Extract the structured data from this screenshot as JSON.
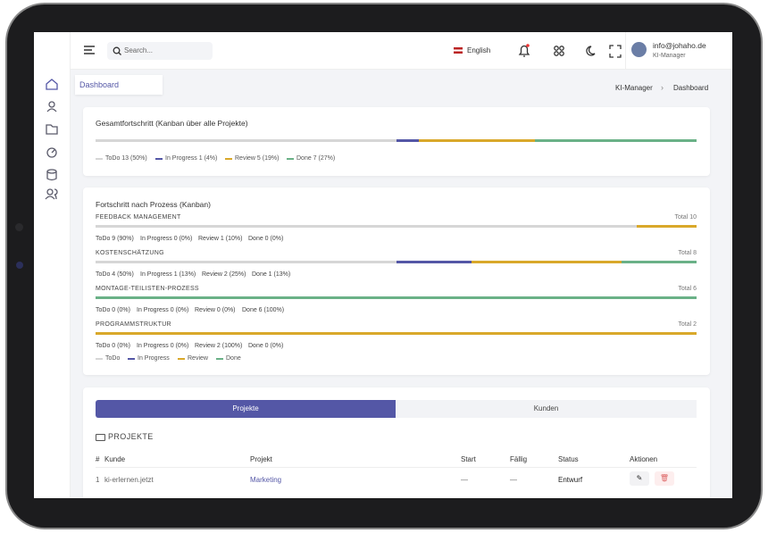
{
  "topbar": {
    "search_placeholder": "Search...",
    "language": "English",
    "user_email": "info@johaho.de",
    "user_role": "KI-Manager"
  },
  "page": {
    "tab": "Dashboard",
    "breadcrumb": [
      "KI-Manager",
      "Dashboard"
    ]
  },
  "status_colors": [
    "#d6d6d6",
    "#5457a6",
    "#d9a82a",
    "#6ab187"
  ],
  "overall": {
    "title": "Gesamtfortschritt (Kanban über alle Projekte)",
    "segments": [
      {
        "label": "ToDo 13 (50%)",
        "value": 13
      },
      {
        "label": "In Progress 1 (4%)",
        "value": 1
      },
      {
        "label": "Review 5 (19%)",
        "value": 5
      },
      {
        "label": "Done 7 (27%)",
        "value": 7
      }
    ]
  },
  "by_process": {
    "title": "Fortschritt nach Prozess (Kanban)",
    "processes": [
      {
        "name": "FEEDBACK MANAGEMENT",
        "total": "Total 10",
        "segments": [
          {
            "label": "ToDo 9 (90%)",
            "value": 9
          },
          {
            "label": "In Progress 0 (0%)",
            "value": 0
          },
          {
            "label": "Review 1 (10%)",
            "value": 1
          },
          {
            "label": "Done 0 (0%)",
            "value": 0
          }
        ]
      },
      {
        "name": "KOSTENSCHÄTZUNG",
        "total": "Total 8",
        "segments": [
          {
            "label": "ToDo 4 (50%)",
            "value": 4
          },
          {
            "label": "In Progress 1 (13%)",
            "value": 1
          },
          {
            "label": "Review 2 (25%)",
            "value": 2
          },
          {
            "label": "Done 1 (13%)",
            "value": 1
          }
        ]
      },
      {
        "name": "MONTAGE-TEILISTEN-PROZESS",
        "total": "Total 6",
        "segments": [
          {
            "label": "ToDo 0 (0%)",
            "value": 0
          },
          {
            "label": "In Progress 0 (0%)",
            "value": 0
          },
          {
            "label": "Review 0 (0%)",
            "value": 0
          },
          {
            "label": "Done 6 (100%)",
            "value": 6
          }
        ]
      },
      {
        "name": "PROGRAMMSTRUKTUR",
        "total": "Total 2",
        "segments": [
          {
            "label": "ToDo 0 (0%)",
            "value": 0
          },
          {
            "label": "In Progress 0 (0%)",
            "value": 0
          },
          {
            "label": "Review 2 (100%)",
            "value": 2
          },
          {
            "label": "Done 0 (0%)",
            "value": 0
          }
        ]
      }
    ],
    "legend": [
      "ToDo",
      "In Progress",
      "Review",
      "Done"
    ]
  },
  "projects": {
    "tabs": [
      "Projekte",
      "Kunden"
    ],
    "heading": "PROJEKTE",
    "columns": [
      "#",
      "Kunde",
      "Projekt",
      "Start",
      "Fällig",
      "Status",
      "Aktionen"
    ],
    "rows": [
      [
        "1",
        "ki-erlernen.jetzt",
        "Marketing",
        "—",
        "—",
        "Entwurf"
      ]
    ]
  }
}
